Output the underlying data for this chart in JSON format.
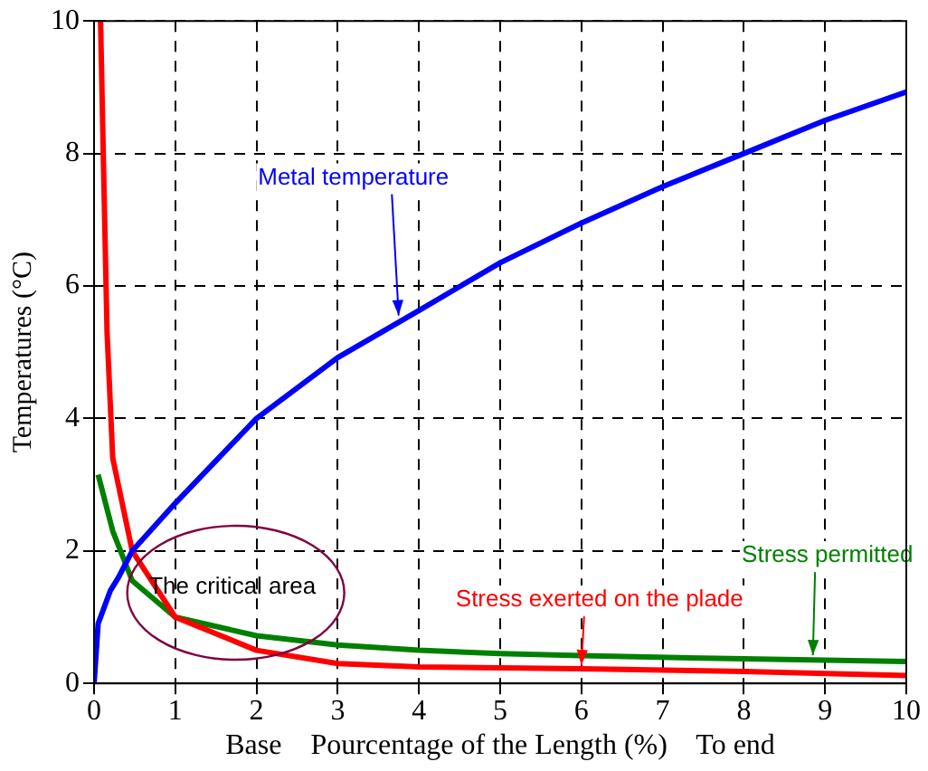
{
  "chart_data": {
    "type": "line",
    "xlabel": "Base    Pourcentage of the Length (%)    To end",
    "ylabel": "Temperatures (°C)",
    "xlim": [
      0,
      10
    ],
    "xticks": [
      0,
      1,
      2,
      3,
      4,
      5,
      6,
      7,
      8,
      9,
      10
    ],
    "ylim": [
      0,
      10
    ],
    "yticks": [
      0,
      2,
      4,
      6,
      8,
      10
    ],
    "grid": true,
    "legend": false,
    "marker": "none",
    "line_style": "solid",
    "series": [
      {
        "color": "#0000ff",
        "x": [
          0,
          0.05,
          0.2,
          0.3,
          0.47,
          1,
          2,
          3,
          4,
          5,
          6,
          7,
          8,
          9,
          10
        ],
        "values": [
          0,
          0.9,
          1.4,
          1.6,
          2,
          2.72,
          4,
          4.92,
          5.63,
          6.35,
          6.95,
          7.5,
          8,
          8.5,
          8.93
        ]
      },
      {
        "color": "#ff0000",
        "x": [
          0.08,
          0.12,
          0.16,
          0.23,
          0.47,
          1,
          2,
          3,
          4,
          6,
          8,
          10
        ],
        "values": [
          10,
          7.6,
          5.3,
          3.4,
          2,
          1,
          0.5,
          0.3,
          0.25,
          0.22,
          0.18,
          0.12
        ]
      },
      {
        "color": "#008000",
        "x": [
          0.05,
          0.23,
          0.47,
          1,
          2,
          3,
          4,
          5,
          6,
          8,
          10
        ],
        "values": [
          3.15,
          2.3,
          1.55,
          1,
          0.72,
          0.58,
          0.5,
          0.45,
          0.42,
          0.37,
          0.33
        ]
      }
    ],
    "annotations": [
      {
        "text": "Metal temperature",
        "x": 3.75,
        "y": 5.5
      },
      {
        "text": "Stress permitted",
        "x": 8.85,
        "y": 0.37
      },
      {
        "text": "Stress exerted on the plade",
        "x": 6,
        "y": 0.22
      },
      "The critical area"
    ]
  }
}
